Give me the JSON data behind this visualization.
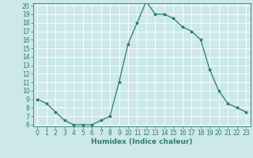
{
  "x": [
    0,
    1,
    2,
    3,
    4,
    5,
    6,
    7,
    8,
    9,
    10,
    11,
    12,
    13,
    14,
    15,
    16,
    17,
    18,
    19,
    20,
    21,
    22,
    23
  ],
  "y": [
    9,
    8.5,
    7.5,
    6.5,
    6,
    6,
    6,
    6.5,
    7,
    11,
    15.5,
    18,
    20.5,
    19,
    19,
    18.5,
    17.5,
    17,
    16,
    12.5,
    10,
    8.5,
    8,
    7.5
  ],
  "line_color": "#2e7d6e",
  "marker": "*",
  "bg_color": "#cce8e8",
  "grid_color": "#ffffff",
  "xlabel": "Humidex (Indice chaleur)",
  "xlabel_fontsize": 6.5,
  "tick_fontsize": 5.5,
  "ylim": [
    6,
    20
  ],
  "xlim": [
    -0.5,
    23.5
  ],
  "yticks": [
    6,
    7,
    8,
    9,
    10,
    11,
    12,
    13,
    14,
    15,
    16,
    17,
    18,
    19,
    20
  ],
  "xticks": [
    0,
    1,
    2,
    3,
    4,
    5,
    6,
    7,
    8,
    9,
    10,
    11,
    12,
    13,
    14,
    15,
    16,
    17,
    18,
    19,
    20,
    21,
    22,
    23
  ]
}
